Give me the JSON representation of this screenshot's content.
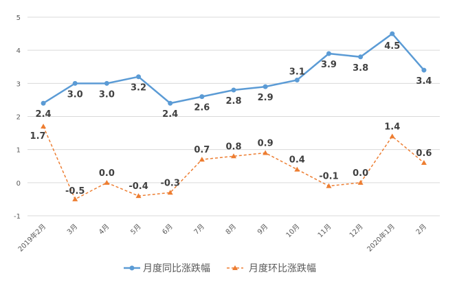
{
  "chart_data": {
    "type": "line",
    "categories": [
      "2019年2月",
      "3月",
      "4月",
      "5月",
      "6月",
      "7月",
      "8月",
      "9月",
      "10月",
      "11月",
      "12月",
      "2020年1月",
      "2月"
    ],
    "series": [
      {
        "name": "月度同比涨跌幅",
        "color": "#5B9BD5",
        "marker": "circle",
        "dash": "solid",
        "values": [
          2.4,
          3.0,
          3.0,
          3.2,
          2.4,
          2.6,
          2.8,
          2.9,
          3.1,
          3.9,
          3.8,
          4.5,
          3.4
        ]
      },
      {
        "name": "月度环比涨跌幅",
        "color": "#ED7D31",
        "marker": "triangle",
        "dash": "dashed",
        "values": [
          1.7,
          -0.5,
          0.0,
          -0.4,
          -0.3,
          0.7,
          0.8,
          0.9,
          0.4,
          -0.1,
          0.0,
          1.4,
          0.6
        ]
      }
    ],
    "yticks": [
      "-1",
      "0",
      "1",
      "2",
      "3",
      "4",
      "5"
    ],
    "ylim": [
      -1,
      5
    ],
    "grid": true,
    "legend": "bottom",
    "data_labels": true
  }
}
